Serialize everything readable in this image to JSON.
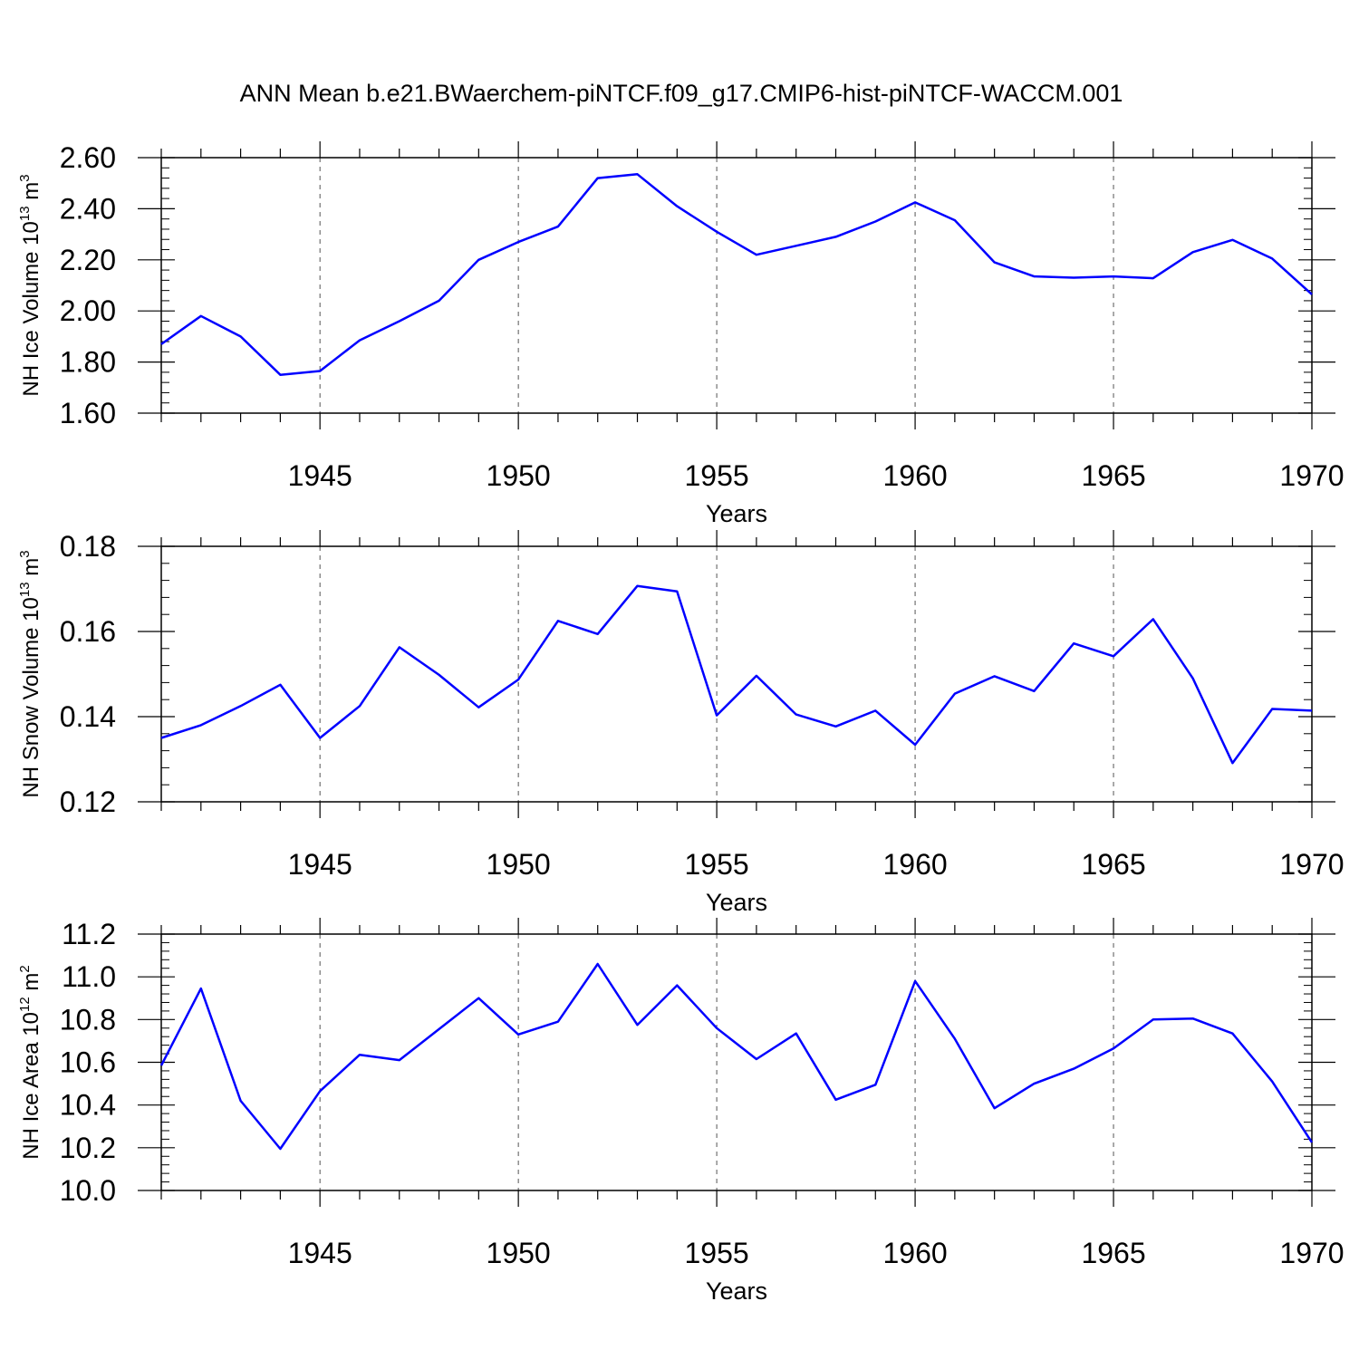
{
  "title": "ANN Mean b.e21.BWaerchem-piNTCF.f09_g17.CMIP6-hist-piNTCF-WACCM.001",
  "colors": {
    "line": "#0000ff",
    "axes": "#000000",
    "grid": "#555555"
  },
  "chart_data": [
    {
      "type": "line",
      "ylabel": {
        "text": "NH Ice Volume 10",
        "sup": "13",
        "unit": " m",
        "unit_sup": "3"
      },
      "xlabel": "Years",
      "xlim": [
        1941,
        1970
      ],
      "ylim": [
        1.6,
        2.6
      ],
      "xticks": [
        1945,
        1950,
        1955,
        1960,
        1965,
        1970
      ],
      "yticks": [
        "1.60",
        "1.80",
        "2.00",
        "2.20",
        "2.40",
        "2.60"
      ],
      "x": [
        1941,
        1942,
        1943,
        1944,
        1945,
        1946,
        1947,
        1948,
        1949,
        1950,
        1951,
        1952,
        1953,
        1954,
        1955,
        1956,
        1957,
        1958,
        1959,
        1960,
        1961,
        1962,
        1963,
        1964,
        1965,
        1966,
        1967,
        1968,
        1969,
        1970
      ],
      "y": [
        1.87,
        1.98,
        1.9,
        1.75,
        1.765,
        1.885,
        1.96,
        2.04,
        2.2,
        2.27,
        2.33,
        2.52,
        2.535,
        2.41,
        2.31,
        2.22,
        2.255,
        2.29,
        2.35,
        2.425,
        2.355,
        2.19,
        2.135,
        2.13,
        2.135,
        2.128,
        2.23,
        2.278,
        2.205,
        2.065
      ]
    },
    {
      "type": "line",
      "ylabel": {
        "text": "NH Snow Volume 10",
        "sup": "13",
        "unit": " m",
        "unit_sup": "3"
      },
      "xlabel": "Years",
      "xlim": [
        1941,
        1970
      ],
      "ylim": [
        0.12,
        0.18
      ],
      "xticks": [
        1945,
        1950,
        1955,
        1960,
        1965,
        1970
      ],
      "yticks": [
        "0.12",
        "0.14",
        "0.16",
        "0.18"
      ],
      "x": [
        1941,
        1942,
        1943,
        1944,
        1945,
        1946,
        1947,
        1948,
        1949,
        1950,
        1951,
        1952,
        1953,
        1954,
        1955,
        1956,
        1957,
        1958,
        1959,
        1960,
        1961,
        1962,
        1963,
        1964,
        1965,
        1966,
        1967,
        1968,
        1969,
        1970
      ],
      "y": [
        0.135,
        0.138,
        0.1425,
        0.1475,
        0.135,
        0.1425,
        0.1563,
        0.1498,
        0.1422,
        0.1487,
        0.1625,
        0.1594,
        0.1707,
        0.1694,
        0.1403,
        0.1496,
        0.1405,
        0.1377,
        0.1414,
        0.1334,
        0.1454,
        0.1495,
        0.146,
        0.1572,
        0.1542,
        0.1629,
        0.149,
        0.1291,
        0.1418,
        0.1414
      ]
    },
    {
      "type": "line",
      "ylabel": {
        "text": "NH Ice Area 10",
        "sup": "12",
        "unit": " m",
        "unit_sup": "2"
      },
      "xlabel": "Years",
      "xlim": [
        1941,
        1970
      ],
      "ylim": [
        10.0,
        11.2
      ],
      "xticks": [
        1945,
        1950,
        1955,
        1960,
        1965,
        1970
      ],
      "yticks": [
        "10.0",
        "10.2",
        "10.4",
        "10.6",
        "10.8",
        "11.0",
        "11.2"
      ],
      "x": [
        1941,
        1942,
        1943,
        1944,
        1945,
        1946,
        1947,
        1948,
        1949,
        1950,
        1951,
        1952,
        1953,
        1954,
        1955,
        1956,
        1957,
        1958,
        1959,
        1960,
        1961,
        1962,
        1963,
        1964,
        1965,
        1966,
        1967,
        1968,
        1969,
        1970
      ],
      "y": [
        10.585,
        10.945,
        10.42,
        10.195,
        10.465,
        10.635,
        10.61,
        10.755,
        10.9,
        10.73,
        10.79,
        11.06,
        10.775,
        10.96,
        10.76,
        10.615,
        10.735,
        10.425,
        10.495,
        10.98,
        10.71,
        10.385,
        10.5,
        10.57,
        10.665,
        10.8,
        10.805,
        10.735,
        10.51,
        10.225
      ]
    }
  ]
}
